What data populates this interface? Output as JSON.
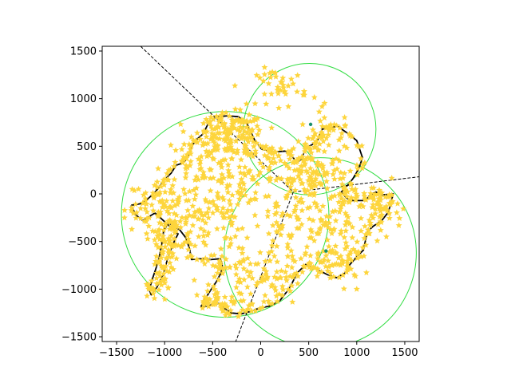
{
  "chart_data": {
    "type": "scatter",
    "title": "",
    "xlabel": "",
    "ylabel": "",
    "xlim": [
      -1650,
      1650
    ],
    "ylim": [
      -1550,
      1550
    ],
    "xticks": [
      -1500,
      -1000,
      -500,
      0,
      500,
      1000,
      1500
    ],
    "yticks": [
      -1500,
      -1000,
      -500,
      0,
      500,
      1000,
      1500
    ],
    "grid": false,
    "colors": {
      "points": "#fdd53c",
      "circles": "#33dd44",
      "outline": "#000000",
      "lines": "#000000",
      "centers": "#1a8f6a"
    },
    "outline": [
      [
        -1350,
        -120
      ],
      [
        -1230,
        -100
      ],
      [
        -1140,
        -20
      ],
      [
        -1090,
        30
      ],
      [
        -1000,
        150
      ],
      [
        -930,
        220
      ],
      [
        -880,
        300
      ],
      [
        -800,
        330
      ],
      [
        -750,
        410
      ],
      [
        -710,
        510
      ],
      [
        -680,
        560
      ],
      [
        -600,
        630
      ],
      [
        -550,
        730
      ],
      [
        -460,
        810
      ],
      [
        -340,
        820
      ],
      [
        -230,
        810
      ],
      [
        -140,
        730
      ],
      [
        -60,
        560
      ],
      [
        10,
        470
      ],
      [
        140,
        440
      ],
      [
        260,
        450
      ],
      [
        330,
        390
      ],
      [
        380,
        330
      ],
      [
        420,
        360
      ],
      [
        470,
        480
      ],
      [
        540,
        520
      ],
      [
        590,
        560
      ],
      [
        640,
        680
      ],
      [
        700,
        690
      ],
      [
        800,
        710
      ],
      [
        900,
        640
      ],
      [
        1000,
        560
      ],
      [
        1060,
        380
      ],
      [
        1020,
        260
      ],
      [
        960,
        160
      ],
      [
        880,
        60
      ],
      [
        840,
        20
      ],
      [
        890,
        -40
      ],
      [
        950,
        -70
      ],
      [
        1090,
        -70
      ],
      [
        1140,
        -10
      ],
      [
        1200,
        20
      ],
      [
        1270,
        -10
      ],
      [
        1380,
        0
      ],
      [
        1330,
        -190
      ],
      [
        1260,
        -280
      ],
      [
        1170,
        -340
      ],
      [
        1110,
        -400
      ],
      [
        1070,
        -590
      ],
      [
        1010,
        -650
      ],
      [
        930,
        -740
      ],
      [
        880,
        -830
      ],
      [
        790,
        -880
      ],
      [
        700,
        -850
      ],
      [
        580,
        -790
      ],
      [
        470,
        -740
      ],
      [
        380,
        -830
      ],
      [
        300,
        -990
      ],
      [
        200,
        -1120
      ],
      [
        90,
        -1180
      ],
      [
        -20,
        -1200
      ],
      [
        -90,
        -1230
      ],
      [
        -200,
        -1260
      ],
      [
        -310,
        -1250
      ],
      [
        -380,
        -1200
      ],
      [
        -440,
        -1150
      ],
      [
        -500,
        -1160
      ],
      [
        -560,
        -1180
      ],
      [
        -620,
        -1180
      ],
      [
        -570,
        -1090
      ],
      [
        -520,
        -1010
      ],
      [
        -460,
        -920
      ],
      [
        -410,
        -820
      ],
      [
        -400,
        -750
      ],
      [
        -420,
        -680
      ],
      [
        -520,
        -690
      ],
      [
        -640,
        -680
      ],
      [
        -720,
        -690
      ],
      [
        -740,
        -580
      ],
      [
        -780,
        -460
      ],
      [
        -840,
        -380
      ],
      [
        -930,
        -320
      ],
      [
        -960,
        -310
      ],
      [
        -1010,
        -380
      ],
      [
        -1020,
        -470
      ],
      [
        -1040,
        -580
      ],
      [
        -1060,
        -680
      ],
      [
        -1090,
        -780
      ],
      [
        -1130,
        -900
      ],
      [
        -1160,
        -1010
      ],
      [
        -1140,
        -1060
      ],
      [
        -1080,
        -980
      ],
      [
        -1020,
        -860
      ],
      [
        -980,
        -720
      ],
      [
        -940,
        -600
      ],
      [
        -900,
        -500
      ],
      [
        -860,
        -420
      ],
      [
        -1100,
        -200
      ],
      [
        -1230,
        -280
      ],
      [
        -1300,
        -220
      ],
      [
        -1350,
        -120
      ]
    ],
    "circles": [
      {
        "cx": -370,
        "cy": -215,
        "r": 1080
      },
      {
        "cx": 510,
        "cy": 680,
        "r": 690
      },
      {
        "cx": 620,
        "cy": -620,
        "r": 1000
      }
    ],
    "centers": [
      {
        "x": 520,
        "y": 730
      },
      {
        "x": 680,
        "y": -600
      }
    ],
    "dashed_lines": [
      {
        "x1": -1250,
        "y1": 1550,
        "x2": 340,
        "y2": 20
      },
      {
        "x1": 340,
        "y1": 20,
        "x2": 1650,
        "y2": 180
      },
      {
        "x1": 340,
        "y1": 20,
        "x2": -260,
        "y2": -1550
      }
    ],
    "scatter_regions": [
      {
        "cx": -320,
        "cy": 620,
        "sx": 180,
        "sy": 110,
        "n": 130
      },
      {
        "cx": -650,
        "cy": 250,
        "sx": 180,
        "sy": 180,
        "n": 60
      },
      {
        "cx": -1000,
        "cy": -180,
        "sx": 200,
        "sy": 200,
        "n": 80
      },
      {
        "cx": -650,
        "cy": -250,
        "sx": 220,
        "sy": 230,
        "n": 60
      },
      {
        "cx": -1020,
        "cy": -700,
        "sx": 60,
        "sy": 210,
        "n": 45
      },
      {
        "cx": -350,
        "cy": -200,
        "sx": 120,
        "sy": 380,
        "n": 60
      },
      {
        "cx": 0,
        "cy": -850,
        "sx": 200,
        "sy": 140,
        "n": 60
      },
      {
        "cx": -350,
        "cy": -1150,
        "sx": 150,
        "sy": 60,
        "n": 30
      },
      {
        "cx": 250,
        "cy": -350,
        "sx": 160,
        "sy": 300,
        "n": 70
      },
      {
        "cx": 480,
        "cy": 170,
        "sx": 230,
        "sy": 130,
        "n": 90
      },
      {
        "cx": 220,
        "cy": 1120,
        "sx": 130,
        "sy": 100,
        "n": 40
      },
      {
        "cx": 700,
        "cy": 520,
        "sx": 150,
        "sy": 180,
        "n": 55
      },
      {
        "cx": 950,
        "cy": -200,
        "sx": 180,
        "sy": 180,
        "n": 60
      },
      {
        "cx": 1250,
        "cy": -120,
        "sx": 100,
        "sy": 110,
        "n": 30
      },
      {
        "cx": 800,
        "cy": -700,
        "sx": 180,
        "sy": 120,
        "n": 60
      },
      {
        "cx": 600,
        "cy": -300,
        "sx": 150,
        "sy": 220,
        "n": 40
      },
      {
        "cx": 80,
        "cy": 380,
        "sx": 200,
        "sy": 110,
        "n": 40
      },
      {
        "cx": -180,
        "cy": 200,
        "sx": 150,
        "sy": 150,
        "n": 30
      }
    ]
  }
}
